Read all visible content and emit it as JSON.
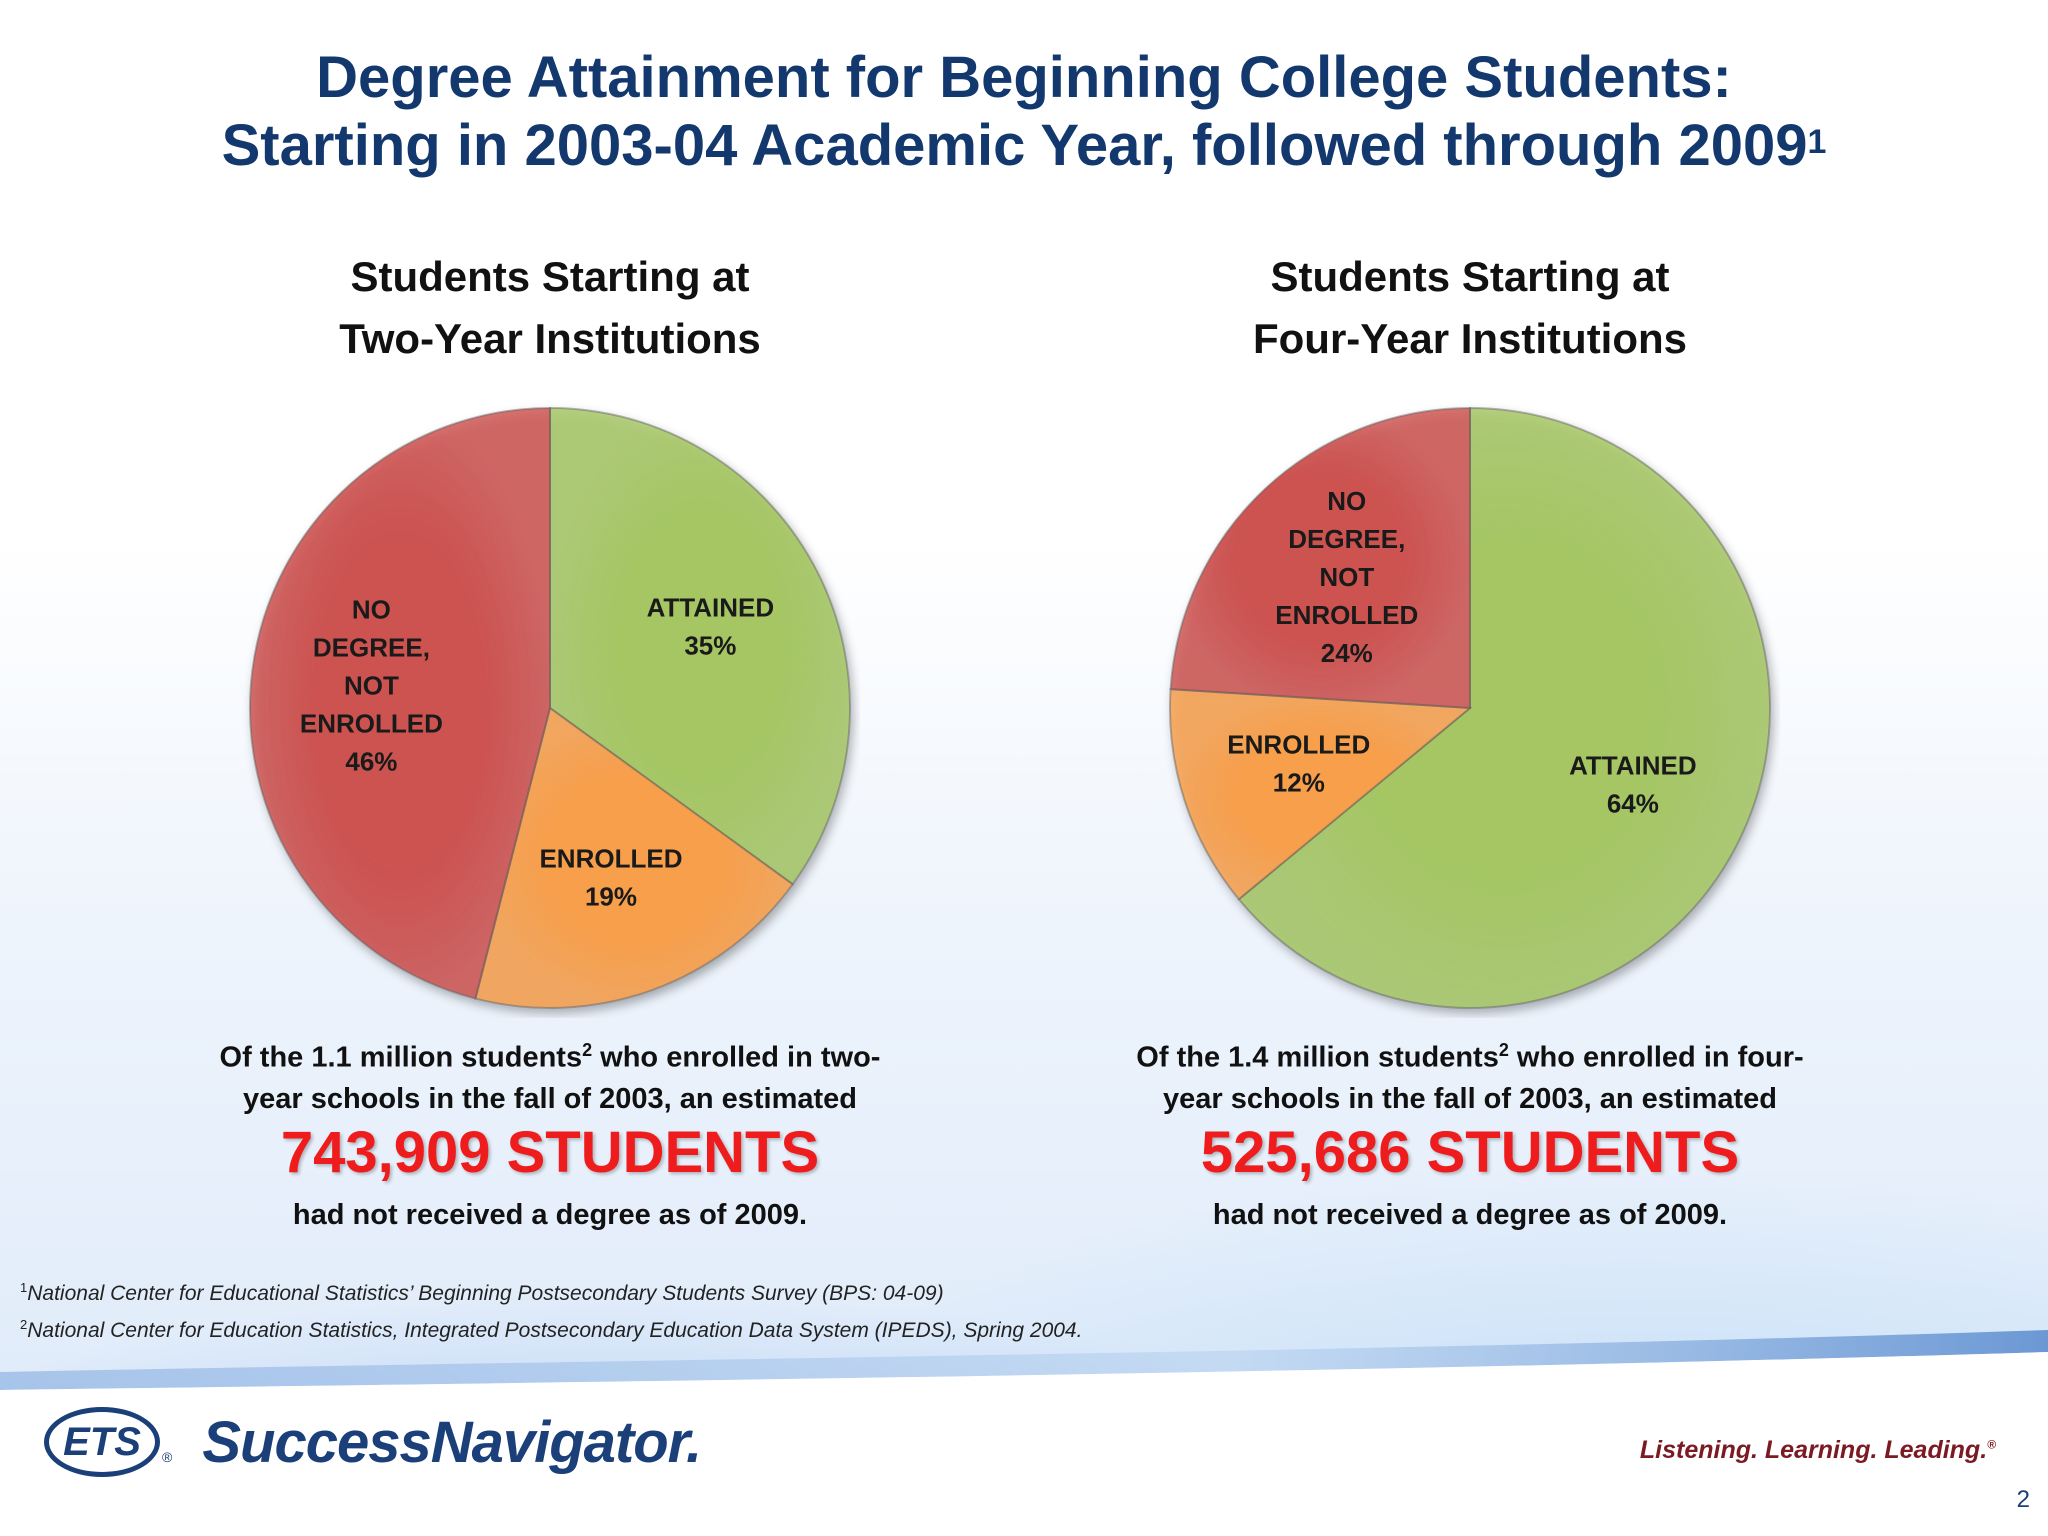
{
  "slide": {
    "title_line1": "Degree Attainment for Beginning College Students:",
    "title_line2": "Starting in 2003-04 Academic Year, followed through 2009",
    "title_sup": "1",
    "page_number": "2"
  },
  "chart_data": [
    {
      "type": "pie",
      "title": "Students Starting at Two-Year Institutions",
      "title_lines": [
        "Students Starting at",
        "Two-Year Institutions"
      ],
      "categories": [
        "ATTAINED",
        "ENROLLED",
        "NO DEGREE, NOT ENROLLED"
      ],
      "values": [
        35,
        19,
        46
      ],
      "value_labels": [
        "35%",
        "19%",
        "46%"
      ],
      "label_lines": [
        [
          "ATTAINED"
        ],
        [
          "ENROLLED"
        ],
        [
          "NO",
          "DEGREE,",
          "NOT",
          "ENROLLED"
        ]
      ],
      "colors": [
        "#a5c664",
        "#f79f4c",
        "#cc5250"
      ],
      "start_angle_deg": 0,
      "legend": "none"
    },
    {
      "type": "pie",
      "title": "Students Starting at Four-Year Institutions",
      "title_lines": [
        "Students Starting at",
        "Four-Year Institutions"
      ],
      "categories": [
        "ATTAINED",
        "ENROLLED",
        "NO DEGREE, NOT ENROLLED"
      ],
      "values": [
        64,
        12,
        24
      ],
      "value_labels": [
        "64%",
        "12%",
        "24%"
      ],
      "label_lines": [
        [
          "ATTAINED"
        ],
        [
          "ENROLLED"
        ],
        [
          "NO",
          "DEGREE,",
          "NOT",
          "ENROLLED"
        ]
      ],
      "colors": [
        "#a5c664",
        "#f79f4c",
        "#cc5250"
      ],
      "start_angle_deg": 0,
      "legend": "none"
    }
  ],
  "left_caption": {
    "line1_a": "Of the 1.1 million students",
    "line1_sup": "2",
    "line1_b": " who enrolled in two-",
    "line2": "year schools in the fall of 2003, an estimated",
    "highlight": "743,909 STUDENTS",
    "line3": "had not received a degree as of 2009."
  },
  "right_caption": {
    "line1_a": "Of the 1.4 million students",
    "line1_sup": "2",
    "line1_b": " who enrolled in four-",
    "line2": "year schools in the fall of 2003, an estimated",
    "highlight": "525,686 STUDENTS",
    "line3": "had not received a degree as of 2009."
  },
  "footnotes": {
    "note1_sup": "1",
    "note1": "National Center for Educational Statistics’ Beginning Postsecondary Students Survey (BPS: 04-09)",
    "note2_sup": "2",
    "note2": "National Center for Education Statistics, Integrated Postsecondary Education Data System (IPEDS), Spring 2004."
  },
  "branding": {
    "ets": "ETS",
    "ets_reg": "®",
    "product": "SuccessNavigator",
    "product_mark": ".",
    "tagline": "Listening. Learning. Leading.",
    "tagline_reg": "®"
  }
}
